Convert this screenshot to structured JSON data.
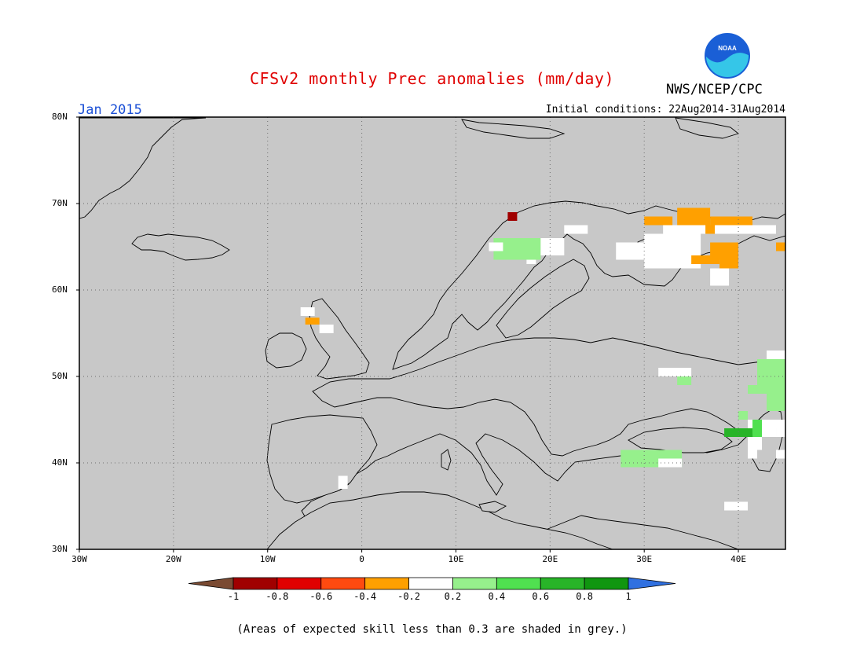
{
  "title": "CFSv2 monthly Prec anomalies (mm/day)",
  "org": "NWS/NCEP/CPC",
  "logo_text": "NOAA",
  "month": "Jan 2015",
  "initial_conditions": "Initial conditions: 22Aug2014-31Aug2014",
  "lat_ticks": [
    "80N",
    "70N",
    "60N",
    "50N",
    "40N",
    "30N"
  ],
  "lon_ticks": [
    "30W",
    "20W",
    "10W",
    "0",
    "10E",
    "20E",
    "30E",
    "40E"
  ],
  "lat_values": [
    80,
    70,
    60,
    50,
    40,
    30
  ],
  "lon_values": [
    -30,
    -20,
    -10,
    0,
    10,
    20,
    30,
    40
  ],
  "map_extent": {
    "lon": [
      -30,
      45
    ],
    "lat": [
      30,
      80
    ]
  },
  "ocean_color": "#c8c8c8",
  "colorbar": {
    "labels": [
      "-1",
      "-0.8",
      "-0.6",
      "-0.4",
      "-0.2",
      "0.2",
      "0.4",
      "0.6",
      "0.8",
      "1"
    ],
    "colors": [
      "#7a4a32",
      "#a00000",
      "#e00000",
      "#ff4a10",
      "#ffa000",
      "#ffffff",
      "#96f08c",
      "#50e050",
      "#28b428",
      "#109610",
      "#3070e0"
    ]
  },
  "note": "(Areas of expected skill less than 0.3 are shaded in grey.)",
  "anomalies": [
    {
      "lon": [
        15.5,
        16.5
      ],
      "lat": [
        68,
        69
      ],
      "color": "#a00000"
    },
    {
      "lon": [
        14,
        19
      ],
      "lat": [
        63.5,
        66
      ],
      "color": "#96f08c"
    },
    {
      "lon": [
        13.5,
        15
      ],
      "lat": [
        64.5,
        65.5
      ],
      "color": "#ffffff"
    },
    {
      "lon": [
        19,
        21.5
      ],
      "lat": [
        64,
        66
      ],
      "color": "#ffffff"
    },
    {
      "lon": [
        21.5,
        24
      ],
      "lat": [
        66.5,
        67.5
      ],
      "color": "#ffffff"
    },
    {
      "lon": [
        17.5,
        18.5
      ],
      "lat": [
        63,
        63.5
      ],
      "color": "#ffffff"
    },
    {
      "lon": [
        27,
        32.5
      ],
      "lat": [
        63.5,
        65.5
      ],
      "color": "#ffffff"
    },
    {
      "lon": [
        30,
        36
      ],
      "lat": [
        62.5,
        66.5
      ],
      "color": "#ffffff"
    },
    {
      "lon": [
        32,
        44
      ],
      "lat": [
        66.5,
        67.5
      ],
      "color": "#ffffff"
    },
    {
      "lon": [
        30,
        33
      ],
      "lat": [
        67.5,
        68.5
      ],
      "color": "#ffa000"
    },
    {
      "lon": [
        33.5,
        37
      ],
      "lat": [
        67.5,
        69.5
      ],
      "color": "#ffa000"
    },
    {
      "lon": [
        37,
        41.5
      ],
      "lat": [
        67.5,
        68.5
      ],
      "color": "#ffa000"
    },
    {
      "lon": [
        36.5,
        37.5
      ],
      "lat": [
        66.5,
        67.5
      ],
      "color": "#ffa000"
    },
    {
      "lon": [
        37,
        40
      ],
      "lat": [
        63.5,
        65.5
      ],
      "color": "#ffa000"
    },
    {
      "lon": [
        35,
        38
      ],
      "lat": [
        63,
        64
      ],
      "color": "#ffa000"
    },
    {
      "lon": [
        38,
        40
      ],
      "lat": [
        62.5,
        63.5
      ],
      "color": "#ffa000"
    },
    {
      "lon": [
        37,
        39
      ],
      "lat": [
        60.5,
        62.5
      ],
      "color": "#ffffff"
    },
    {
      "lon": [
        44,
        45
      ],
      "lat": [
        64.5,
        65.5
      ],
      "color": "#ffa000"
    },
    {
      "lon": [
        -6.5,
        -5
      ],
      "lat": [
        57,
        58
      ],
      "color": "#ffffff"
    },
    {
      "lon": [
        -6,
        -4.5
      ],
      "lat": [
        56,
        56.8
      ],
      "color": "#ffa000"
    },
    {
      "lon": [
        -4.5,
        -3
      ],
      "lat": [
        55,
        56
      ],
      "color": "#ffffff"
    },
    {
      "lon": [
        -2.5,
        -1.5
      ],
      "lat": [
        37,
        38.5
      ],
      "color": "#ffffff"
    },
    {
      "lon": [
        31.5,
        35
      ],
      "lat": [
        50,
        51
      ],
      "color": "#ffffff"
    },
    {
      "lon": [
        33.5,
        35
      ],
      "lat": [
        49,
        50
      ],
      "color": "#96f08c"
    },
    {
      "lon": [
        42,
        45
      ],
      "lat": [
        48,
        52
      ],
      "color": "#96f08c"
    },
    {
      "lon": [
        43,
        45
      ],
      "lat": [
        52,
        53
      ],
      "color": "#ffffff"
    },
    {
      "lon": [
        41,
        42
      ],
      "lat": [
        48,
        49
      ],
      "color": "#96f08c"
    },
    {
      "lon": [
        43,
        45
      ],
      "lat": [
        46,
        48
      ],
      "color": "#96f08c"
    },
    {
      "lon": [
        40,
        41
      ],
      "lat": [
        45,
        46
      ],
      "color": "#96f08c"
    },
    {
      "lon": [
        41,
        45
      ],
      "lat": [
        44,
        45
      ],
      "color": "#ffffff"
    },
    {
      "lon": [
        38.5,
        41.5
      ],
      "lat": [
        43,
        44
      ],
      "color": "#28b428"
    },
    {
      "lon": [
        41.5,
        42.5
      ],
      "lat": [
        43,
        45
      ],
      "color": "#50e050"
    },
    {
      "lon": [
        42.5,
        44
      ],
      "lat": [
        43,
        44
      ],
      "color": "#ffffff"
    },
    {
      "lon": [
        44,
        45
      ],
      "lat": [
        43,
        44
      ],
      "color": "#ffffff"
    },
    {
      "lon": [
        41,
        42.5
      ],
      "lat": [
        41.5,
        43
      ],
      "color": "#ffffff"
    },
    {
      "lon": [
        41,
        42
      ],
      "lat": [
        40.5,
        41.5
      ],
      "color": "#ffffff"
    },
    {
      "lon": [
        44,
        45
      ],
      "lat": [
        40.5,
        41.5
      ],
      "color": "#ffffff"
    },
    {
      "lon": [
        27.5,
        34
      ],
      "lat": [
        39.5,
        41.5
      ],
      "color": "#96f08c"
    },
    {
      "lon": [
        31.5,
        34
      ],
      "lat": [
        39.5,
        40.5
      ],
      "color": "#ffffff"
    },
    {
      "lon": [
        38.5,
        41
      ],
      "lat": [
        34.5,
        35.5
      ],
      "color": "#ffffff"
    }
  ]
}
